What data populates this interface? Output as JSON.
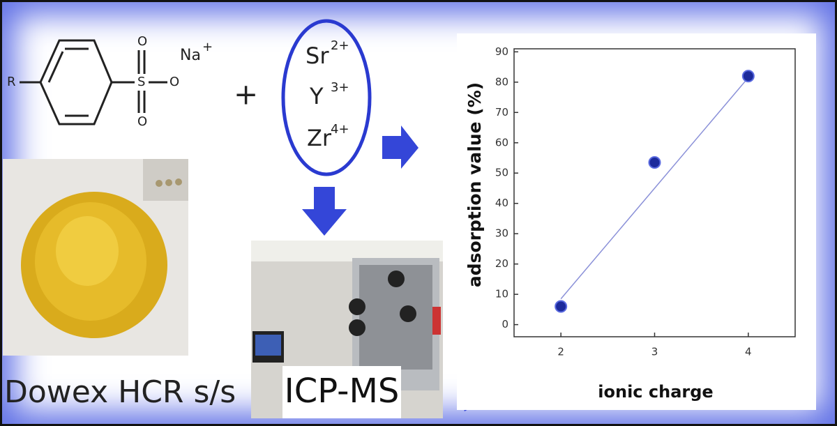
{
  "structure": {
    "r": "R",
    "s": "S",
    "o_top": "O",
    "o_bottom": "O",
    "o_right": "O",
    "cation": "Na",
    "cation_charge": "+"
  },
  "plus": "+",
  "ions": [
    {
      "symbol": "Sr",
      "charge": "2+"
    },
    {
      "symbol": "Y",
      "charge": "3+"
    },
    {
      "symbol": "Zr",
      "charge": "4+"
    }
  ],
  "photos": {
    "resin": "Dowex HCR s/s",
    "instrument": "ICP-MS"
  },
  "chart_data": {
    "type": "scatter",
    "x_label": "ionic charge",
    "y_label": "adsorption value  (%)",
    "x": [
      2,
      3,
      4
    ],
    "values": [
      6,
      53.5,
      82
    ],
    "color": "#1c2a9c",
    "trendline": {
      "x": [
        2,
        4
      ],
      "values": [
        8.5,
        81.5
      ],
      "color": "#8a90d8"
    },
    "xlim": [
      1.5,
      4.5
    ],
    "ylim": [
      -4,
      91
    ],
    "xticks": [
      2,
      3,
      4
    ],
    "yticks": [
      0,
      10,
      20,
      30,
      40,
      50,
      60,
      70,
      80,
      90
    ]
  }
}
